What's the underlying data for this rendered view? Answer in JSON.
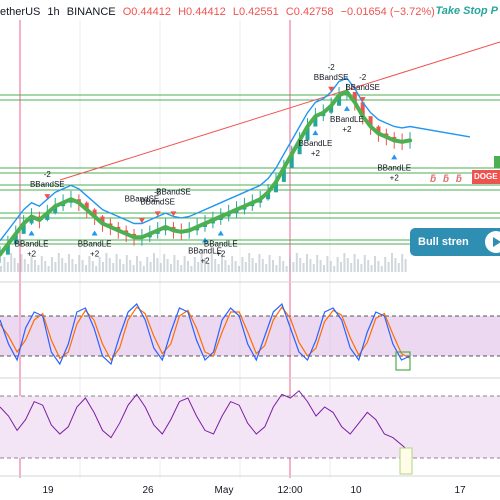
{
  "header": {
    "symbol": "etherUS",
    "interval": "1h",
    "exchange": "BINANCE",
    "open": "O0.44412",
    "high": "H0.44412",
    "low": "L0.42551",
    "close": "C0.42758",
    "change": "−0.01654 (−3.72%)",
    "right_label": "Take Stop P"
  },
  "colors": {
    "price_line": "#2196f3",
    "smooth": "#4caf50",
    "trend": "#ef5350",
    "osc_band": "#e1bee7",
    "stoch_k": "#2962ff",
    "stoch_d": "#ff6d00",
    "rsi": "#7b1fa2"
  },
  "badge": {
    "text": "Bull stren",
    "icon": "play-icon"
  },
  "price_tag": "DOGE",
  "symbol_marks": "ƃ ƃ ƃ",
  "chart_data": {
    "type": "line",
    "x_ticks": [
      "19",
      "26",
      "May",
      "12:00",
      "10",
      "17"
    ],
    "price_series": [
      0.255,
      0.27,
      0.285,
      0.3,
      0.31,
      0.305,
      0.315,
      0.325,
      0.33,
      0.335,
      0.33,
      0.32,
      0.31,
      0.3,
      0.295,
      0.29,
      0.285,
      0.28,
      0.28,
      0.285,
      0.29,
      0.295,
      0.29,
      0.288,
      0.29,
      0.295,
      0.3,
      0.305,
      0.31,
      0.315,
      0.32,
      0.325,
      0.33,
      0.335,
      0.345,
      0.36,
      0.38,
      0.4,
      0.42,
      0.44,
      0.455,
      0.46,
      0.47,
      0.485,
      0.49,
      0.475,
      0.455,
      0.44,
      0.43,
      0.425,
      0.42,
      0.418,
      0.42
    ],
    "signals": [
      {
        "label": "-2",
        "sub": "BBandSE",
        "dir": "sell"
      },
      {
        "label": "BBandLE",
        "sub": "+2",
        "dir": "buy"
      },
      {
        "label": "BBandLE",
        "sub": "+2",
        "dir": "buy"
      },
      {
        "label": "-2",
        "sub": "BBandSE",
        "dir": "sell"
      },
      {
        "label": "BBandSE",
        "sub": "",
        "dir": "sell"
      },
      {
        "label": "BBandSE",
        "sub": "",
        "dir": "sell"
      },
      {
        "label": "BBandLE",
        "sub": "+2",
        "dir": "buy"
      },
      {
        "label": "BBandLE",
        "sub": "+2",
        "dir": "buy"
      },
      {
        "label": "-2",
        "sub": "BBandSE",
        "dir": "sell"
      },
      {
        "label": "BBandLE",
        "sub": "+2",
        "dir": "buy"
      },
      {
        "label": "-2",
        "sub": "BBandSE",
        "dir": "sell"
      },
      {
        "label": "BBandLE",
        "sub": "+2",
        "dir": "buy"
      },
      {
        "label": "BBandLE",
        "sub": "+2",
        "dir": "buy"
      }
    ],
    "stoch_k": [
      70,
      40,
      20,
      60,
      80,
      75,
      30,
      15,
      40,
      80,
      85,
      60,
      25,
      15,
      50,
      80,
      90,
      70,
      35,
      20,
      55,
      85,
      80,
      45,
      20,
      30,
      70,
      85,
      75,
      40,
      20,
      50,
      80,
      90,
      60,
      30,
      20,
      45,
      80,
      85,
      70,
      35,
      20,
      55,
      80,
      75,
      40,
      20,
      25
    ],
    "stoch_d": [
      65,
      50,
      30,
      45,
      70,
      78,
      45,
      22,
      30,
      65,
      82,
      70,
      40,
      20,
      35,
      70,
      86,
      78,
      50,
      28,
      40,
      75,
      82,
      60,
      30,
      25,
      55,
      80,
      80,
      55,
      28,
      38,
      70,
      86,
      72,
      42,
      25,
      35,
      68,
      82,
      76,
      48,
      26,
      42,
      72,
      78,
      52,
      28,
      22
    ],
    "rsi": [
      55,
      50,
      42,
      48,
      58,
      56,
      45,
      40,
      44,
      55,
      60,
      52,
      42,
      38,
      46,
      56,
      62,
      55,
      45,
      40,
      48,
      58,
      60,
      50,
      42,
      40,
      50,
      58,
      56,
      46,
      40,
      44,
      55,
      62,
      60,
      64,
      58,
      50,
      55,
      52,
      44,
      40,
      46,
      52,
      48,
      40,
      38,
      34,
      30
    ]
  }
}
